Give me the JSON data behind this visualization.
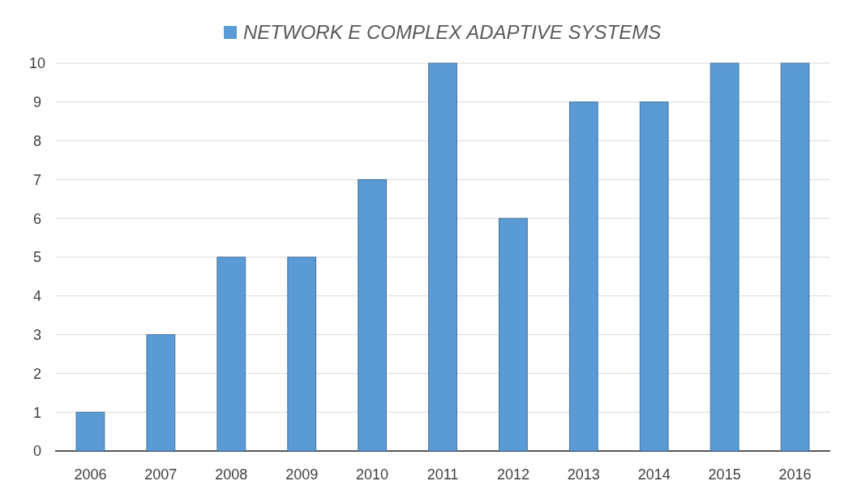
{
  "chart_data": {
    "type": "bar",
    "categories": [
      "2006",
      "2007",
      "2008",
      "2009",
      "2010",
      "2011",
      "2012",
      "2013",
      "2014",
      "2015",
      "2016"
    ],
    "series": [
      {
        "name": "NETWORK E COMPLEX ADAPTIVE SYSTEMS",
        "color": "#5b9bd5",
        "values": [
          1,
          3,
          5,
          5,
          7,
          10,
          6,
          9,
          9,
          10,
          10
        ]
      }
    ],
    "ylim": [
      0,
      10
    ],
    "yticks": [
      0,
      1,
      2,
      3,
      4,
      5,
      6,
      7,
      8,
      9,
      10
    ],
    "grid": "y",
    "legend": "top"
  }
}
